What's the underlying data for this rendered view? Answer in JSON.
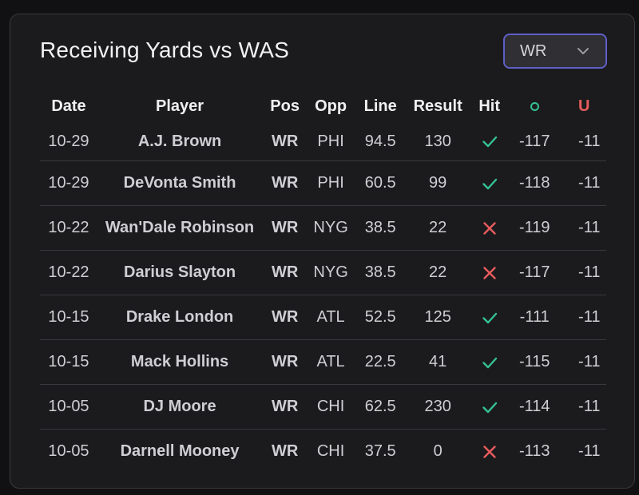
{
  "title": "Receiving Yards vs WAS",
  "position_filter": {
    "selected": "WR",
    "icon": "chevron-down-icon"
  },
  "colors": {
    "accent": "#5f5fc7",
    "hit": "#34c38f",
    "miss": "#e85c5c"
  },
  "table": {
    "headers": {
      "date": "Date",
      "player": "Player",
      "pos": "Pos",
      "opp": "Opp",
      "line": "Line",
      "result": "Result",
      "hit": "Hit",
      "over": "O",
      "under": "U"
    },
    "rows": [
      {
        "date": "10-29",
        "player": "A.J. Brown",
        "pos": "WR",
        "opp": "PHI",
        "line": "94.5",
        "result": "130",
        "hit": "check-icon",
        "over": "-117",
        "under": "-11"
      },
      {
        "date": "10-29",
        "player": "DeVonta Smith",
        "pos": "WR",
        "opp": "PHI",
        "line": "60.5",
        "result": "99",
        "hit": "check-icon",
        "over": "-118",
        "under": "-11"
      },
      {
        "date": "10-22",
        "player": "Wan'Dale Robinson",
        "pos": "WR",
        "opp": "NYG",
        "line": "38.5",
        "result": "22",
        "hit": "x-icon",
        "over": "-119",
        "under": "-11"
      },
      {
        "date": "10-22",
        "player": "Darius Slayton",
        "pos": "WR",
        "opp": "NYG",
        "line": "38.5",
        "result": "22",
        "hit": "x-icon",
        "over": "-117",
        "under": "-11"
      },
      {
        "date": "10-15",
        "player": "Drake London",
        "pos": "WR",
        "opp": "ATL",
        "line": "52.5",
        "result": "125",
        "hit": "check-icon",
        "over": "-111",
        "under": "-11"
      },
      {
        "date": "10-15",
        "player": "Mack Hollins",
        "pos": "WR",
        "opp": "ATL",
        "line": "22.5",
        "result": "41",
        "hit": "check-icon",
        "over": "-115",
        "under": "-11"
      },
      {
        "date": "10-05",
        "player": "DJ Moore",
        "pos": "WR",
        "opp": "CHI",
        "line": "62.5",
        "result": "230",
        "hit": "check-icon",
        "over": "-114",
        "under": "-11"
      },
      {
        "date": "10-05",
        "player": "Darnell Mooney",
        "pos": "WR",
        "opp": "CHI",
        "line": "37.5",
        "result": "0",
        "hit": "x-icon",
        "over": "-113",
        "under": "-11"
      }
    ]
  }
}
